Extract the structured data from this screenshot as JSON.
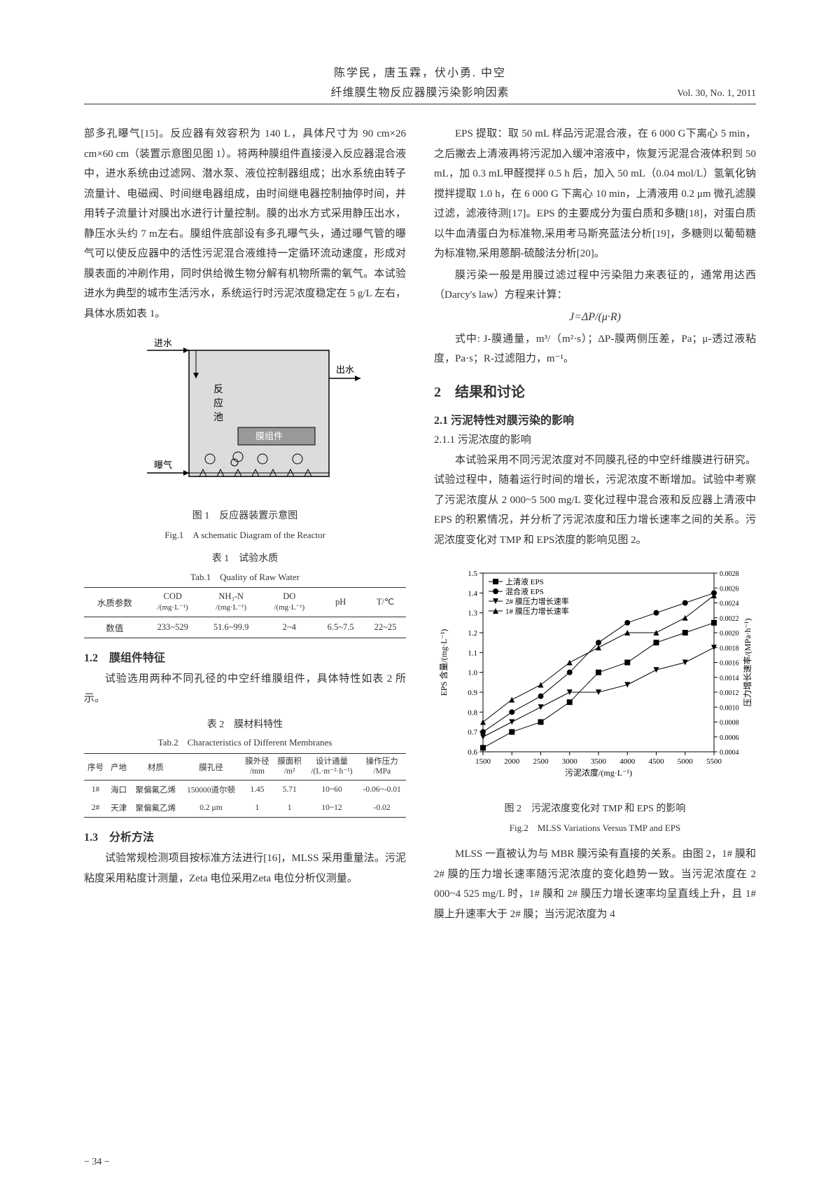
{
  "header": {
    "authors": "陈学民，唐玉霖，伏小勇. 中空",
    "title": "纤维膜生物反应器膜污染影响因素",
    "vol": "Vol. 30, No. 1, 2011"
  },
  "left": {
    "p1": "部多孔曝气[15]。反应器有效容积为 140 L，具体尺寸为 90 cm×26 cm×60 cm（装置示意图见图 1）。将两种膜组件直接浸入反应器混合液中，进水系统由过滤网、潜水泵、液位控制器组成；出水系统由转子流量计、电磁阀、时间继电器组成，由时间继电器控制抽停时间，并用转子流量计对膜出水进行计量控制。膜的出水方式采用静压出水，静压水头约 7 m左右。膜组件底部设有多孔曝气头，通过曝气管的曝气可以使反应器中的活性污泥混合液维持一定循环流动速度，形成对膜表面的冲刷作用，同时供给微生物分解有机物所需的氧气。本试验进水为典型的城市生活污水，系统运行时污泥浓度稳定在 5 g/L 左右，具体水质如表 1。",
    "fig1_labels": {
      "inflow": "进水",
      "outflow": "出水",
      "reactor": "反应池",
      "membrane": "膜组件",
      "aeration": "曝气"
    },
    "fig1_caption_cn": "图 1　反应器装置示意图",
    "fig1_caption_en": "Fig.1　A schematic Diagram of the Reactor",
    "tab1_caption_cn": "表 1　试验水质",
    "tab1_caption_en": "Tab.1　Quality of Raw Water",
    "tab1_headers": [
      "水质参数",
      "COD\n/(mg·L⁻¹)",
      "NH₃-N\n/(mg·L⁻¹)",
      "DO\n/(mg·L⁻¹)",
      "pH",
      "T/℃"
    ],
    "tab1_row_label": "数值",
    "tab1_row": [
      "233~529",
      "51.6~99.9",
      "2~4",
      "6.5~7.5",
      "22~25"
    ],
    "h12": "1.2　膜组件特征",
    "p12": "试验选用两种不同孔径的中空纤维膜组件，具体特性如表 2 所示。",
    "tab2_caption_cn": "表 2　膜材料特性",
    "tab2_caption_en": "Tab.2　Characteristics of Different Membranes",
    "tab2_headers": [
      "序号",
      "产地",
      "材质",
      "膜孔径",
      "膜外径\n/mm",
      "膜面积\n/m²",
      "设计通量\n/(L·m⁻²·h⁻¹)",
      "操作压力\n/MPa"
    ],
    "tab2_rows": [
      [
        "1#",
        "海口",
        "聚偏氟乙烯",
        "150000道尔顿",
        "1.45",
        "5.71",
        "10~60",
        "-0.06~-0.01"
      ],
      [
        "2#",
        "天津",
        "聚偏氟乙烯",
        "0.2 μm",
        "1",
        "1",
        "10~12",
        "-0.02"
      ]
    ],
    "h13": "1.3　分析方法",
    "p13": "试验常规检测项目按标准方法进行[16]，MLSS 采用重量法。污泥粘度采用粘度计测量，Zeta 电位采用Zeta 电位分析仪测量。"
  },
  "right": {
    "p_eps": "EPS 提取：取 50 mL 样品污泥混合液，在 6 000 G下离心 5 min，之后撇去上清液再将污泥加入缓冲溶液中，恢复污泥混合液体积到 50 mL，加 0.3 mL甲醛搅拌 0.5 h 后，加入 50 mL（0.04 mol/L）氢氧化钠搅拌提取 1.0 h，在 6 000 G 下离心 10 min，上清液用 0.2 μm 微孔滤膜过滤，滤液待测[17]。EPS 的主要成分为蛋白质和多糖[18]，对蛋白质以牛血清蛋白为标准物,采用考马斯亮蓝法分析[19]，多糖则以葡萄糖为标准物,采用蒽酮-硫酸法分析[20]。",
    "p_darcy": "膜污染一般是用膜过滤过程中污染阻力来表征的，通常用达西（Darcy's law）方程来计算：",
    "formula": "J=ΔP/(μ·R)",
    "p_formula_note": "式中: J-膜通量，m³/（m²·s）；ΔP-膜两侧压差，Pa；μ-透过液粘度，Pa·s；R-过滤阻力，m⁻¹。",
    "h2": "2　结果和讨论",
    "h21": "2.1 污泥特性对膜污染的影响",
    "h211": "2.1.1 污泥浓度的影响",
    "p211": "本试验采用不同污泥浓度对不同膜孔径的中空纤维膜进行研究。试验过程中，随着运行时间的增长，污泥浓度不断增加。试验中考察了污泥浓度从 2 000~5 500 mg/L 变化过程中混合液和反应器上清液中 EPS 的积累情况，并分析了污泥浓度和压力增长速率之间的关系。污泥浓度变化对 TMP 和 EPS浓度的影响见图 2。",
    "fig2": {
      "type": "dual-axis-line",
      "x": [
        1500,
        2000,
        2500,
        3000,
        3500,
        4000,
        4500,
        5000,
        5500
      ],
      "x_label": "污泥浓度/(mg·L⁻¹)",
      "y1_label": "EPS 含量/(mg·L⁻¹)",
      "y2_label": "压力增长速率/(MPa·h⁻¹)",
      "y1_range": [
        0.6,
        1.5
      ],
      "y2_range": [
        0.0004,
        0.0028
      ],
      "y1_ticks": [
        0.6,
        0.7,
        0.8,
        0.9,
        1.0,
        1.1,
        1.2,
        1.3,
        1.4,
        1.5
      ],
      "y2_ticks": [
        0.0004,
        0.0006,
        0.0008,
        0.001,
        0.0012,
        0.0014,
        0.0016,
        0.0018,
        0.002,
        0.0022,
        0.0024,
        0.0026,
        0.0028
      ],
      "legend": [
        "上清液 EPS",
        "混合液 EPS",
        "2# 膜压力增长速率",
        "1# 膜压力增长速率"
      ],
      "legend_markers": [
        "square",
        "circle",
        "dtriangle",
        "utriangle"
      ],
      "series": {
        "supernatant_eps": {
          "marker": "square",
          "y": [
            0.62,
            0.7,
            0.75,
            0.85,
            1.0,
            1.05,
            1.15,
            1.2,
            1.25
          ]
        },
        "mixed_eps": {
          "marker": "circle",
          "y": [
            0.7,
            0.8,
            0.88,
            1.0,
            1.15,
            1.25,
            1.3,
            1.35,
            1.4
          ]
        },
        "mem2_tmp": {
          "marker": "dtriangle",
          "y2": [
            0.0006,
            0.0008,
            0.001,
            0.0012,
            0.0012,
            0.0013,
            0.0015,
            0.0016,
            0.0018
          ]
        },
        "mem1_tmp": {
          "marker": "utriangle",
          "y2": [
            0.0008,
            0.0011,
            0.0013,
            0.0016,
            0.0018,
            0.002,
            0.002,
            0.0022,
            0.0025
          ]
        }
      },
      "colors": {
        "line": "#000000",
        "grid": "#000000",
        "bg": "#ffffff"
      },
      "line_width": 1,
      "marker_size": 5
    },
    "fig2_caption_cn": "图 2　污泥浓度变化对 TMP 和 EPS 的影响",
    "fig2_caption_en": "Fig.2　MLSS Variations Versus TMP and EPS",
    "p_mlss": "MLSS 一直被认为与 MBR 膜污染有直接的关系。由图 2，1# 膜和 2# 膜的压力增长速率随污泥浓度的变化趋势一致。当污泥浓度在 2 000~4 525 mg/L 时，1# 膜和 2# 膜压力增长速率均呈直线上升，且 1# 膜上升速率大于 2# 膜；当污泥浓度为 4"
  },
  "page_num": "− 34 −"
}
